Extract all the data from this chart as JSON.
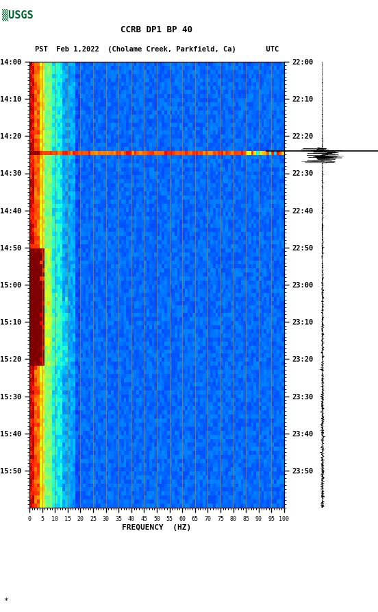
{
  "title_line1": "CCRB DP1 BP 40",
  "title_line2": "PST  Feb 1,2022  (Cholame Creek, Parkfield, Ca)       UTC",
  "xlabel": "FREQUENCY  (HZ)",
  "left_times": [
    "14:00",
    "14:10",
    "14:20",
    "14:30",
    "14:40",
    "14:50",
    "15:00",
    "15:10",
    "15:20",
    "15:30",
    "15:40",
    "15:50"
  ],
  "right_times": [
    "22:00",
    "22:10",
    "22:20",
    "22:30",
    "22:40",
    "22:50",
    "23:00",
    "23:10",
    "23:20",
    "23:30",
    "23:40",
    "23:50"
  ],
  "freq_ticks": [
    0,
    5,
    10,
    15,
    20,
    25,
    30,
    35,
    40,
    45,
    50,
    55,
    60,
    65,
    70,
    75,
    80,
    85,
    90,
    95,
    100
  ],
  "freq_gridlines": [
    5,
    10,
    15,
    20,
    25,
    30,
    35,
    40,
    45,
    50,
    55,
    60,
    65,
    70,
    75,
    80,
    85,
    90,
    95
  ],
  "n_time": 110,
  "n_freq": 100,
  "eq_stripe_t": 22,
  "usgs_logo_color": "#006633"
}
